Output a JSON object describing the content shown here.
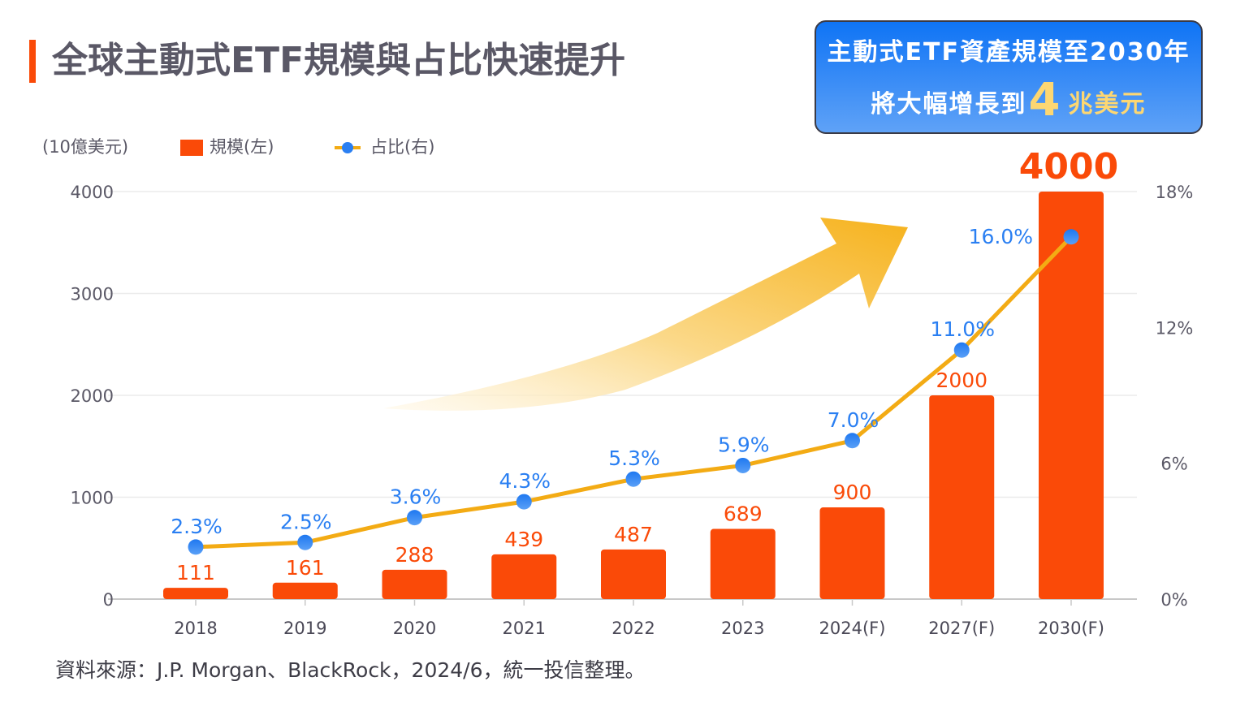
{
  "header": {
    "title": "全球主動式ETF規模與占比快速提升",
    "accent_color": "#fa4a08"
  },
  "callout": {
    "line1": "主動式ETF資產規模至2030年",
    "line2_prefix": "將大幅增長到",
    "line2_highlight": "4",
    "line2_suffix": "兆美元",
    "background_color": "#2f86f6",
    "highlight_color": "#fdd772"
  },
  "legend": {
    "unit_label": "(10億美元)",
    "bar_label": "規模(左)",
    "line_label": "占比(右)"
  },
  "chart_data": {
    "type": "bar",
    "title": "全球主動式ETF規模與占比快速提升",
    "categories": [
      "2018",
      "2019",
      "2020",
      "2021",
      "2022",
      "2023",
      "2024(F)",
      "2027(F)",
      "2030(F)"
    ],
    "series": [
      {
        "name": "規模(左)",
        "type": "bar",
        "axis": "left",
        "color": "#fa4a08",
        "values": [
          111,
          161,
          288,
          439,
          487,
          689,
          900,
          2000,
          4000
        ],
        "labels": [
          "111",
          "161",
          "288",
          "439",
          "487",
          "689",
          "900",
          "2000",
          "4000"
        ]
      },
      {
        "name": "占比(右)",
        "type": "line",
        "axis": "right",
        "line_color": "#f3ab14",
        "marker_color": "#2a7ff2",
        "values": [
          2.3,
          2.5,
          3.6,
          4.3,
          5.3,
          5.9,
          7.0,
          11.0,
          16.0
        ],
        "labels": [
          "2.3%",
          "2.5%",
          "3.6%",
          "4.3%",
          "5.3%",
          "5.9%",
          "7.0%",
          "11.0%",
          "16.0%"
        ]
      }
    ],
    "ylabel": "(10億美元)",
    "ylim": [
      0,
      4000
    ],
    "y_ticks": [
      "0",
      "1000",
      "2000",
      "3000",
      "4000"
    ],
    "y_tick_values": [
      0,
      1000,
      2000,
      3000,
      4000
    ],
    "y2lim": [
      0,
      18
    ],
    "y2_ticks": [
      "0%",
      "6%",
      "12%",
      "18%"
    ],
    "y2_tick_values": [
      0,
      6,
      12,
      18
    ],
    "grid": true,
    "legend_position": "top-left",
    "annotation": "upward trend arrow"
  },
  "footer": {
    "source": "資料來源：J.P. Morgan、BlackRock，2024/6，統一投信整理。"
  }
}
